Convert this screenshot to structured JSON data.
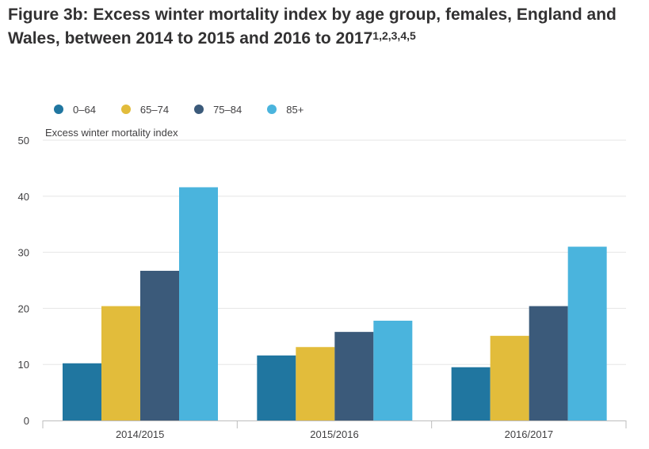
{
  "title": {
    "main": "Figure 3b: Excess winter mortality index by age group, females, England and Wales, between 2014 to 2015 and 2016 to 2017",
    "superscript": "1,2,3,4,5"
  },
  "chart_data": {
    "type": "bar",
    "title": "Figure 3b: Excess winter mortality index by age group, females, England and Wales, between 2014 to 2015 and 2016 to 2017",
    "xlabel": "",
    "ylabel": "Excess winter mortality index",
    "ylim": [
      0,
      50
    ],
    "yticks": [
      0,
      10,
      20,
      30,
      40,
      50
    ],
    "grid": true,
    "legend_position": "top-left",
    "categories": [
      "2014/2015",
      "2015/2016",
      "2016/2017"
    ],
    "series": [
      {
        "name": "0–64",
        "color": "#2076a0",
        "values": [
          10.2,
          11.6,
          9.5
        ]
      },
      {
        "name": "65–74",
        "color": "#e2bc3b",
        "values": [
          20.4,
          13.1,
          15.1
        ]
      },
      {
        "name": "75–84",
        "color": "#3b5a7a",
        "values": [
          26.7,
          15.8,
          20.4
        ]
      },
      {
        "name": "85+",
        "color": "#4ab4dd",
        "values": [
          41.6,
          17.8,
          31.0
        ]
      }
    ]
  }
}
